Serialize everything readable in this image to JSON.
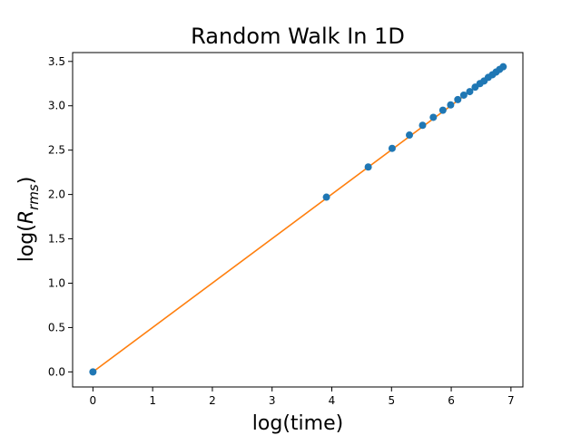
{
  "chart_data": {
    "type": "scatter",
    "title": "Random Walk In 1D",
    "xlabel": "log(time)",
    "ylabel_prefix": "log(",
    "ylabel_main": "R",
    "ylabel_sub": "rms",
    "ylabel_suffix": ")",
    "xlim": [
      -0.34,
      7.2
    ],
    "ylim": [
      -0.17,
      3.6
    ],
    "xticks": [
      0,
      1,
      2,
      3,
      4,
      5,
      6,
      7
    ],
    "xtick_labels": [
      "0",
      "1",
      "2",
      "3",
      "4",
      "5",
      "6",
      "7"
    ],
    "yticks": [
      0.0,
      0.5,
      1.0,
      1.5,
      2.0,
      2.5,
      3.0,
      3.5
    ],
    "ytick_labels": [
      "0.0",
      "0.5",
      "1.0",
      "1.5",
      "2.0",
      "2.5",
      "3.0",
      "3.5"
    ],
    "grid": false,
    "marker_color": "#1f77b4",
    "fit_color": "#ff7f0e",
    "points": [
      {
        "x": 0.0,
        "y": 0.0
      },
      {
        "x": 3.91,
        "y": 1.97
      },
      {
        "x": 4.61,
        "y": 2.31
      },
      {
        "x": 5.01,
        "y": 2.52
      },
      {
        "x": 5.3,
        "y": 2.67
      },
      {
        "x": 5.52,
        "y": 2.78
      },
      {
        "x": 5.7,
        "y": 2.87
      },
      {
        "x": 5.86,
        "y": 2.95
      },
      {
        "x": 5.99,
        "y": 3.01
      },
      {
        "x": 6.11,
        "y": 3.07
      },
      {
        "x": 6.21,
        "y": 3.12
      },
      {
        "x": 6.31,
        "y": 3.16
      },
      {
        "x": 6.4,
        "y": 3.21
      },
      {
        "x": 6.48,
        "y": 3.25
      },
      {
        "x": 6.55,
        "y": 3.28
      },
      {
        "x": 6.62,
        "y": 3.32
      },
      {
        "x": 6.69,
        "y": 3.35
      },
      {
        "x": 6.75,
        "y": 3.38
      },
      {
        "x": 6.81,
        "y": 3.41
      },
      {
        "x": 6.87,
        "y": 3.44
      }
    ],
    "fit_line": {
      "x": [
        0.0,
        6.87
      ],
      "y": [
        0.0,
        3.44
      ]
    }
  }
}
